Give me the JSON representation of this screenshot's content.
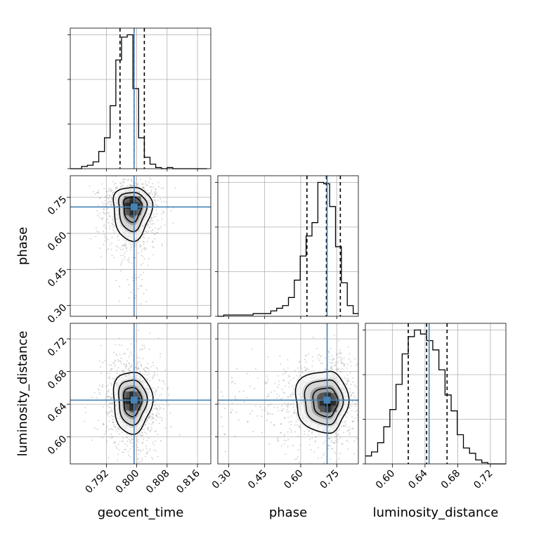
{
  "chart_data": {
    "type": "corner",
    "parameters": [
      "geocent_time",
      "phase",
      "luminosity_distance"
    ],
    "truths": {
      "geocent_time": 0.7993,
      "phase": 0.71,
      "luminosity_distance": 0.645
    },
    "truth_color": "#4682b4",
    "ranges": {
      "geocent_time": [
        0.7825,
        0.8195
      ],
      "phase": [
        0.255,
        0.84
      ],
      "luminosity_distance": [
        0.567,
        0.739
      ]
    },
    "ticks": {
      "geocent_time": [
        "0.792",
        "0.800",
        "0.808",
        "0.816"
      ],
      "phase": [
        "0.30",
        "0.45",
        "0.60",
        "0.75"
      ],
      "luminosity_distance": [
        "0.60",
        "0.64",
        "0.68",
        "0.72"
      ]
    },
    "tick_values": {
      "geocent_time": [
        0.792,
        0.8,
        0.808,
        0.816
      ],
      "phase": [
        0.3,
        0.45,
        0.6,
        0.75
      ],
      "luminosity_distance": [
        0.6,
        0.64,
        0.68,
        0.72
      ]
    },
    "histograms": {
      "geocent_time": {
        "edges": [
          0.7825,
          0.784,
          0.7855,
          0.787,
          0.7885,
          0.79,
          0.7915,
          0.793,
          0.7945,
          0.796,
          0.7975,
          0.799,
          0.8005,
          0.802,
          0.8035,
          0.805,
          0.8065,
          0.808,
          0.8095,
          0.811,
          0.8125,
          0.814,
          0.8155,
          0.817,
          0.8185
        ],
        "counts": [
          0,
          0,
          2,
          3,
          6,
          15,
          27,
          55,
          95,
          115,
          117,
          70,
          27,
          10,
          4,
          1,
          0,
          1,
          0,
          0,
          0,
          0,
          0,
          0
        ],
        "quantiles": [
          0.7956,
          0.7993,
          0.802
        ]
      },
      "phase": {
        "edges": [
          0.255,
          0.2795,
          0.304,
          0.3285,
          0.353,
          0.3775,
          0.402,
          0.4265,
          0.451,
          0.4755,
          0.5,
          0.5245,
          0.549,
          0.5735,
          0.598,
          0.6225,
          0.647,
          0.6715,
          0.696,
          0.7205,
          0.745,
          0.7695,
          0.794,
          0.8185,
          0.84
        ],
        "counts": [
          0,
          1,
          1,
          1,
          1,
          1,
          2,
          2,
          2,
          4,
          6,
          8,
          14,
          27,
          45,
          60,
          70,
          100,
          99,
          82,
          52,
          25,
          8,
          2
        ],
        "quantiles": [
          0.626,
          0.707,
          0.765
        ]
      },
      "luminosity_distance": {
        "edges": [
          0.567,
          0.5745,
          0.582,
          0.5895,
          0.597,
          0.6045,
          0.612,
          0.6195,
          0.627,
          0.6345,
          0.642,
          0.6495,
          0.657,
          0.6645,
          0.672,
          0.6795,
          0.687,
          0.6945,
          0.702,
          0.7095,
          0.717,
          0.7245,
          0.732,
          0.739
        ],
        "counts": [
          6,
          9,
          16,
          28,
          41,
          60,
          83,
          96,
          101,
          98,
          93,
          86,
          71,
          52,
          40,
          22,
          12,
          8,
          3,
          1,
          0,
          0,
          0
        ],
        "quantiles": [
          0.6195,
          0.642,
          0.667
        ]
      }
    },
    "density": {
      "geocent_time|phase": {
        "peak": [
          0.7989,
          0.715
        ],
        "levels": [
          0.39,
          0.86,
          1.18,
          1.5
        ]
      },
      "geocent_time|luminosity_distance": {
        "peak": [
          0.7988,
          0.644
        ],
        "levels": [
          0.39,
          0.86,
          1.18,
          1.5
        ]
      },
      "phase|luminosity_distance": {
        "peak": [
          0.715,
          0.642
        ],
        "levels": [
          0.39,
          0.86,
          1.18,
          1.5
        ]
      }
    }
  }
}
